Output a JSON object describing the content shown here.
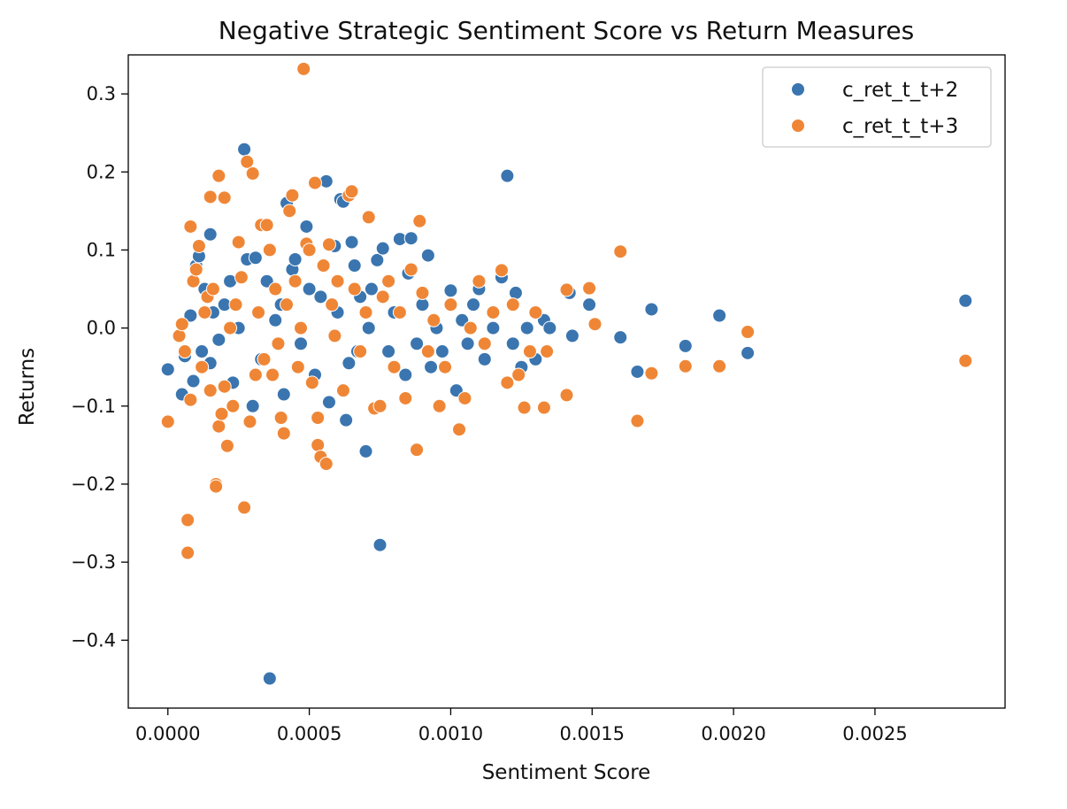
{
  "chart_data": {
    "type": "scatter",
    "title": "Negative Strategic Sentiment Score vs Return Measures",
    "xlabel": "Sentiment Score",
    "ylabel": "Returns",
    "xlim": [
      -0.00014,
      0.00296
    ],
    "ylim": [
      -0.487,
      0.35
    ],
    "xticks": [
      0.0,
      0.0005,
      0.001,
      0.0015,
      0.002,
      0.0025
    ],
    "xtick_labels": [
      "0.0000",
      "0.0005",
      "0.0010",
      "0.0015",
      "0.0020",
      "0.0025"
    ],
    "yticks": [
      -0.4,
      -0.3,
      -0.2,
      -0.1,
      0.0,
      0.1,
      0.2,
      0.3
    ],
    "ytick_labels": [
      "−0.4",
      "−0.3",
      "−0.2",
      "−0.1",
      "0.0",
      "0.1",
      "0.2",
      "0.3"
    ],
    "grid": false,
    "legend_position": "top-right",
    "series": [
      {
        "name": "c_ret_t_t+2",
        "color": "#3a75af",
        "points": [
          [
            0.0,
            -0.053
          ],
          [
            5e-05,
            -0.085
          ],
          [
            6e-05,
            -0.036
          ],
          [
            8e-05,
            0.016
          ],
          [
            9e-05,
            -0.068
          ],
          [
            0.0001,
            0.08
          ],
          [
            0.00011,
            0.092
          ],
          [
            0.00012,
            -0.03
          ],
          [
            0.00013,
            0.05
          ],
          [
            0.00015,
            -0.045
          ],
          [
            0.00015,
            0.12
          ],
          [
            0.00016,
            0.02
          ],
          [
            0.00018,
            -0.015
          ],
          [
            0.0002,
            0.03
          ],
          [
            0.00022,
            0.06
          ],
          [
            0.00023,
            -0.07
          ],
          [
            0.00025,
            0.0
          ],
          [
            0.00027,
            0.229
          ],
          [
            0.00028,
            0.088
          ],
          [
            0.0003,
            -0.1
          ],
          [
            0.00031,
            0.09
          ],
          [
            0.00033,
            -0.04
          ],
          [
            0.00035,
            0.06
          ],
          [
            0.00036,
            -0.449
          ],
          [
            0.00038,
            0.01
          ],
          [
            0.0004,
            0.03
          ],
          [
            0.00041,
            -0.085
          ],
          [
            0.00042,
            0.16
          ],
          [
            0.00044,
            0.075
          ],
          [
            0.00045,
            0.088
          ],
          [
            0.00047,
            -0.02
          ],
          [
            0.00049,
            0.13
          ],
          [
            0.0005,
            0.05
          ],
          [
            0.00052,
            -0.06
          ],
          [
            0.00054,
            0.04
          ],
          [
            0.00056,
            0.188
          ],
          [
            0.00057,
            -0.095
          ],
          [
            0.00059,
            0.105
          ],
          [
            0.0006,
            0.02
          ],
          [
            0.00061,
            0.165
          ],
          [
            0.00062,
            0.162
          ],
          [
            0.00063,
            -0.118
          ],
          [
            0.00064,
            -0.045
          ],
          [
            0.00065,
            0.11
          ],
          [
            0.00066,
            0.08
          ],
          [
            0.00067,
            -0.03
          ],
          [
            0.00068,
            0.04
          ],
          [
            0.0007,
            -0.158
          ],
          [
            0.00071,
            0.0
          ],
          [
            0.00072,
            0.05
          ],
          [
            0.00074,
            0.087
          ],
          [
            0.00075,
            -0.278
          ],
          [
            0.00076,
            0.102
          ],
          [
            0.00078,
            -0.03
          ],
          [
            0.0008,
            0.02
          ],
          [
            0.00082,
            0.114
          ],
          [
            0.00084,
            -0.06
          ],
          [
            0.00085,
            0.07
          ],
          [
            0.00086,
            0.115
          ],
          [
            0.00088,
            -0.02
          ],
          [
            0.0009,
            0.03
          ],
          [
            0.00092,
            0.093
          ],
          [
            0.00093,
            -0.05
          ],
          [
            0.00095,
            0.0
          ],
          [
            0.00097,
            -0.03
          ],
          [
            0.001,
            0.048
          ],
          [
            0.00102,
            -0.08
          ],
          [
            0.00104,
            0.01
          ],
          [
            0.00106,
            -0.02
          ],
          [
            0.00108,
            0.03
          ],
          [
            0.0011,
            0.05
          ],
          [
            0.00112,
            -0.04
          ],
          [
            0.00115,
            0.0
          ],
          [
            0.00118,
            0.065
          ],
          [
            0.0012,
            0.195
          ],
          [
            0.00122,
            -0.02
          ],
          [
            0.00123,
            0.045
          ],
          [
            0.00125,
            -0.05
          ],
          [
            0.00127,
            0.0
          ],
          [
            0.0013,
            -0.04
          ],
          [
            0.00133,
            0.01
          ],
          [
            0.00135,
            0.0
          ],
          [
            0.00142,
            0.045
          ],
          [
            0.00143,
            -0.01
          ],
          [
            0.00149,
            0.03
          ],
          [
            0.0016,
            -0.012
          ],
          [
            0.00166,
            -0.056
          ],
          [
            0.00171,
            0.024
          ],
          [
            0.00183,
            -0.023
          ],
          [
            0.00195,
            0.016
          ],
          [
            0.00205,
            -0.032
          ],
          [
            0.00282,
            0.035
          ]
        ]
      },
      {
        "name": "c_ret_t_t+3",
        "color": "#ef8636",
        "points": [
          [
            0.0,
            -0.12
          ],
          [
            4e-05,
            -0.01
          ],
          [
            5e-05,
            0.005
          ],
          [
            6e-05,
            -0.03
          ],
          [
            7e-05,
            -0.246
          ],
          [
            7e-05,
            -0.288
          ],
          [
            8e-05,
            -0.092
          ],
          [
            8e-05,
            0.13
          ],
          [
            9e-05,
            0.06
          ],
          [
            0.0001,
            0.075
          ],
          [
            0.00011,
            0.105
          ],
          [
            0.00012,
            -0.05
          ],
          [
            0.00013,
            0.02
          ],
          [
            0.00014,
            0.04
          ],
          [
            0.00015,
            -0.08
          ],
          [
            0.00015,
            0.168
          ],
          [
            0.00016,
            0.05
          ],
          [
            0.00017,
            -0.2
          ],
          [
            0.00017,
            -0.203
          ],
          [
            0.00018,
            0.195
          ],
          [
            0.00018,
            -0.126
          ],
          [
            0.00019,
            -0.11
          ],
          [
            0.0002,
            0.167
          ],
          [
            0.0002,
            -0.075
          ],
          [
            0.00021,
            -0.151
          ],
          [
            0.00022,
            0.0
          ],
          [
            0.00023,
            -0.1
          ],
          [
            0.00024,
            0.03
          ],
          [
            0.00025,
            0.11
          ],
          [
            0.00026,
            0.065
          ],
          [
            0.00027,
            -0.23
          ],
          [
            0.00028,
            0.213
          ],
          [
            0.00029,
            -0.12
          ],
          [
            0.0003,
            0.198
          ],
          [
            0.00031,
            -0.06
          ],
          [
            0.00032,
            0.02
          ],
          [
            0.00033,
            0.132
          ],
          [
            0.00034,
            -0.04
          ],
          [
            0.00035,
            0.132
          ],
          [
            0.00036,
            0.1
          ],
          [
            0.00037,
            -0.06
          ],
          [
            0.00038,
            0.05
          ],
          [
            0.00039,
            -0.02
          ],
          [
            0.0004,
            -0.115
          ],
          [
            0.00041,
            -0.135
          ],
          [
            0.00042,
            0.03
          ],
          [
            0.00043,
            0.15
          ],
          [
            0.00044,
            0.17
          ],
          [
            0.00045,
            0.06
          ],
          [
            0.00046,
            -0.05
          ],
          [
            0.00047,
            0.0
          ],
          [
            0.00048,
            0.332
          ],
          [
            0.00049,
            0.108
          ],
          [
            0.0005,
            0.1
          ],
          [
            0.00051,
            -0.07
          ],
          [
            0.00052,
            0.186
          ],
          [
            0.00053,
            -0.115
          ],
          [
            0.00053,
            -0.15
          ],
          [
            0.00054,
            -0.165
          ],
          [
            0.00055,
            0.08
          ],
          [
            0.00056,
            -0.174
          ],
          [
            0.00057,
            0.107
          ],
          [
            0.00058,
            0.03
          ],
          [
            0.00059,
            -0.01
          ],
          [
            0.0006,
            0.06
          ],
          [
            0.00062,
            -0.08
          ],
          [
            0.00064,
            0.17
          ],
          [
            0.00065,
            0.175
          ],
          [
            0.00066,
            0.05
          ],
          [
            0.00068,
            -0.03
          ],
          [
            0.0007,
            0.02
          ],
          [
            0.00071,
            0.142
          ],
          [
            0.00073,
            -0.103
          ],
          [
            0.00075,
            -0.1
          ],
          [
            0.00076,
            0.04
          ],
          [
            0.00078,
            0.06
          ],
          [
            0.0008,
            -0.05
          ],
          [
            0.00082,
            0.02
          ],
          [
            0.00084,
            -0.09
          ],
          [
            0.00086,
            0.075
          ],
          [
            0.00088,
            -0.156
          ],
          [
            0.00089,
            0.137
          ],
          [
            0.0009,
            0.045
          ],
          [
            0.00092,
            -0.03
          ],
          [
            0.00094,
            0.01
          ],
          [
            0.00096,
            -0.1
          ],
          [
            0.00098,
            -0.05
          ],
          [
            0.001,
            0.03
          ],
          [
            0.00103,
            -0.13
          ],
          [
            0.00105,
            -0.09
          ],
          [
            0.00107,
            0.0
          ],
          [
            0.0011,
            0.06
          ],
          [
            0.00112,
            -0.02
          ],
          [
            0.00115,
            0.02
          ],
          [
            0.00118,
            0.074
          ],
          [
            0.0012,
            -0.07
          ],
          [
            0.00122,
            0.03
          ],
          [
            0.00124,
            -0.06
          ],
          [
            0.00126,
            -0.102
          ],
          [
            0.00128,
            -0.03
          ],
          [
            0.0013,
            0.02
          ],
          [
            0.00133,
            -0.102
          ],
          [
            0.00134,
            -0.03
          ],
          [
            0.00141,
            0.049
          ],
          [
            0.00141,
            -0.086
          ],
          [
            0.00149,
            0.051
          ],
          [
            0.00151,
            0.005
          ],
          [
            0.0016,
            0.098
          ],
          [
            0.00166,
            -0.119
          ],
          [
            0.00171,
            -0.058
          ],
          [
            0.00183,
            -0.049
          ],
          [
            0.00195,
            -0.049
          ],
          [
            0.00205,
            -0.005
          ],
          [
            0.00282,
            -0.042
          ]
        ]
      }
    ]
  }
}
